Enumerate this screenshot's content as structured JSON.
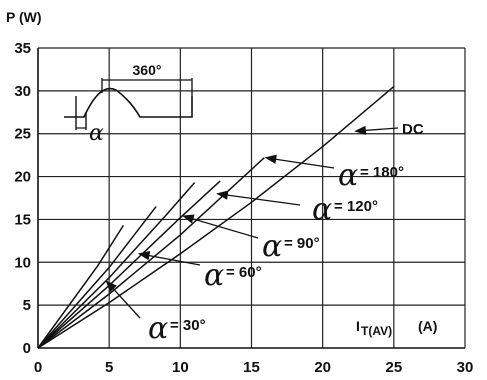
{
  "chart_data": {
    "type": "line",
    "ylabel": "P (W)",
    "xlabel": "I",
    "xlabel_sub": "T(AV)",
    "xlabel_unit": "(A)",
    "xlim": [
      0,
      30
    ],
    "ylim": [
      0,
      35
    ],
    "xticks": [
      "0",
      "5",
      "10",
      "15",
      "20",
      "25",
      "30"
    ],
    "yticks": [
      "0",
      "5",
      "10",
      "15",
      "20",
      "25",
      "30",
      "35"
    ],
    "grid": true,
    "series": [
      {
        "name": "DC",
        "label": "DC",
        "alpha": "",
        "points": [
          [
            0,
            0
          ],
          [
            5,
            5.3
          ],
          [
            10,
            11
          ],
          [
            15,
            17
          ],
          [
            20,
            23.5
          ],
          [
            25,
            30.5
          ]
        ]
      },
      {
        "name": "180°",
        "label": "= 180°",
        "alpha": "α",
        "points": [
          [
            0,
            0
          ],
          [
            5,
            6.3
          ],
          [
            10,
            13.2
          ],
          [
            15.9,
            22.2
          ]
        ]
      },
      {
        "name": "120°",
        "label": "= 120°",
        "alpha": "α",
        "points": [
          [
            0,
            0
          ],
          [
            5,
            7.3
          ],
          [
            10,
            15.2
          ],
          [
            12.8,
            19.5
          ]
        ]
      },
      {
        "name": "90°",
        "label": "= 90°",
        "alpha": "α",
        "points": [
          [
            0,
            0
          ],
          [
            5,
            8.2
          ],
          [
            9,
            15.5
          ],
          [
            11,
            19.3
          ]
        ]
      },
      {
        "name": "60°",
        "label": "= 60°",
        "alpha": "α",
        "points": [
          [
            0,
            0
          ],
          [
            5,
            9.4
          ],
          [
            8.3,
            16.5
          ]
        ]
      },
      {
        "name": "30°",
        "label": "= 30°",
        "alpha": "α",
        "points": [
          [
            0,
            0
          ],
          [
            4.2,
            9.6
          ],
          [
            6,
            14.3
          ]
        ]
      }
    ],
    "inset": {
      "period_label": "360°",
      "angle_label": "α"
    }
  }
}
